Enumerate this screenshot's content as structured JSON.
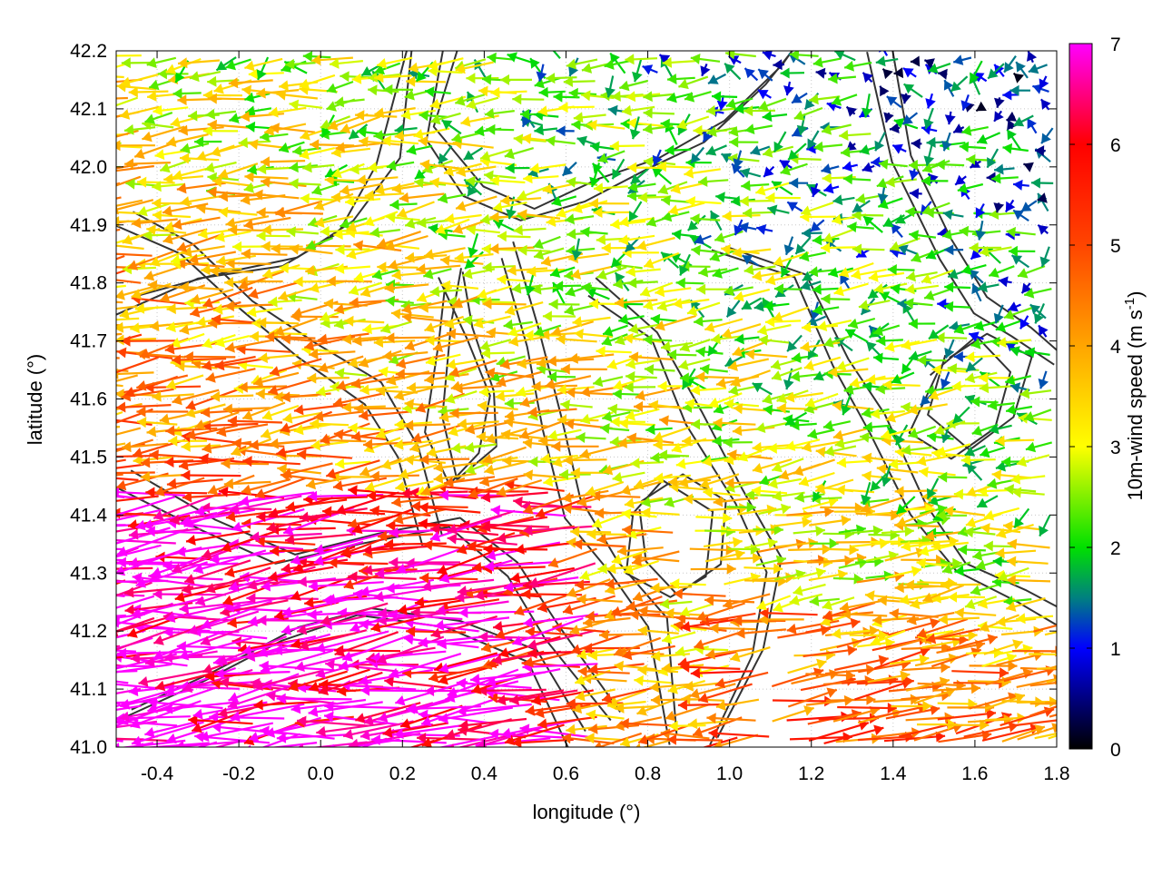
{
  "chart_data": {
    "type": "vector-field",
    "title": "",
    "xlabel": "longitude (°)",
    "ylabel": "latitude (°)",
    "xlim": [
      -0.5,
      1.8
    ],
    "ylim": [
      41.0,
      42.2
    ],
    "x_ticks": [
      "-0.4",
      "-0.2",
      "0.0",
      "0.2",
      "0.4",
      "0.6",
      "0.8",
      "1.0",
      "1.2",
      "1.4",
      "1.6",
      "1.8"
    ],
    "x_tick_values": [
      -0.4,
      -0.2,
      0.0,
      0.2,
      0.4,
      0.6,
      0.8,
      1.0,
      1.2,
      1.4,
      1.6,
      1.8
    ],
    "y_ticks": [
      "41.0",
      "41.1",
      "41.2",
      "41.3",
      "41.4",
      "41.5",
      "41.6",
      "41.7",
      "41.8",
      "41.9",
      "42.0",
      "42.1",
      "42.2"
    ],
    "y_tick_values": [
      41.0,
      41.1,
      41.2,
      41.3,
      41.4,
      41.5,
      41.6,
      41.7,
      41.8,
      41.9,
      42.0,
      42.1,
      42.2
    ],
    "grid": true,
    "colorbar": {
      "label": "10m-wind speed (m s",
      "label_superscript": "-1",
      "label_close": ")",
      "range": [
        0,
        7
      ],
      "ticks": [
        "0",
        "1",
        "2",
        "3",
        "4",
        "5",
        "6",
        "7"
      ],
      "tick_values": [
        0,
        1,
        2,
        3,
        4,
        5,
        6,
        7
      ],
      "stops": [
        {
          "value": 0,
          "color": "#000000"
        },
        {
          "value": 1,
          "color": "#0000ff"
        },
        {
          "value": 1.5,
          "color": "#008080"
        },
        {
          "value": 2,
          "color": "#00e000"
        },
        {
          "value": 3,
          "color": "#ffff00"
        },
        {
          "value": 4,
          "color": "#ffa500"
        },
        {
          "value": 5,
          "color": "#ff4500"
        },
        {
          "value": 6,
          "color": "#ff0000"
        },
        {
          "value": 7,
          "color": "#ff00ff"
        }
      ]
    },
    "contour_color": "#333333",
    "note_values": "Wind vectors (u, v) on a regular lon/lat grid; predominantly easterly flow (arrows pointing west), stronger (4–7 m/s) in the south-west, weak (0–2 m/s) in the north-east; grey terrain contour lines overlaid."
  }
}
